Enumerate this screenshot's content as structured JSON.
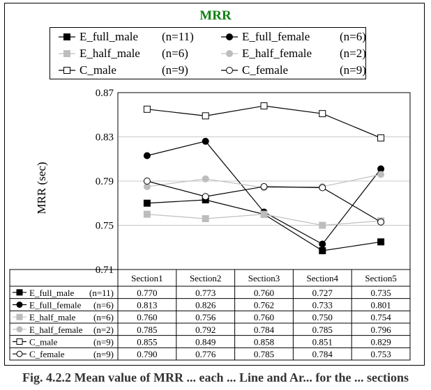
{
  "chart_data": {
    "type": "line",
    "title": "MRR",
    "ylabel": "MRR (sec)",
    "xlabel": "",
    "categories": [
      "Section1",
      "Section2",
      "Section3",
      "Section4",
      "Section5"
    ],
    "ylim": [
      0.71,
      0.87
    ],
    "yticks": [
      "0.87",
      "0.83",
      "0.79",
      "0.75",
      "0.71"
    ],
    "ytick_values": [
      0.87,
      0.83,
      0.79,
      0.75,
      0.71
    ],
    "grid": "horizontal",
    "legend_placement": "top",
    "series": [
      {
        "name": "E_full_male",
        "count": "(n=11)",
        "marker": "filled-square",
        "color": "#000000",
        "marker_color": "#000000",
        "values": [
          0.77,
          0.773,
          0.76,
          0.727,
          0.735
        ],
        "labels": [
          "0.770",
          "0.773",
          "0.760",
          "0.727",
          "0.735"
        ]
      },
      {
        "name": "E_full_female",
        "count": "(n=6)",
        "marker": "filled-circle",
        "color": "#000000",
        "marker_color": "#000000",
        "values": [
          0.813,
          0.826,
          0.762,
          0.733,
          0.801
        ],
        "labels": [
          "0.813",
          "0.826",
          "0.762",
          "0.733",
          "0.801"
        ]
      },
      {
        "name": "E_half_male",
        "count": "(n=6)",
        "marker": "filled-square",
        "color": "#c0c0c0",
        "marker_color": "#bdbdbd",
        "values": [
          0.76,
          0.756,
          0.76,
          0.75,
          0.754
        ],
        "labels": [
          "0.760",
          "0.756",
          "0.760",
          "0.750",
          "0.754"
        ]
      },
      {
        "name": "E_half_female",
        "count": "(n=2)",
        "marker": "filled-circle",
        "color": "#c0c0c0",
        "marker_color": "#bdbdbd",
        "values": [
          0.785,
          0.792,
          0.784,
          0.785,
          0.796
        ],
        "labels": [
          "0.785",
          "0.792",
          "0.784",
          "0.785",
          "0.796"
        ]
      },
      {
        "name": "C_male",
        "count": "(n=9)",
        "marker": "open-square",
        "color": "#000000",
        "marker_color": "#000000",
        "values": [
          0.855,
          0.849,
          0.858,
          0.851,
          0.829
        ],
        "labels": [
          "0.855",
          "0.849",
          "0.858",
          "0.851",
          "0.829"
        ]
      },
      {
        "name": "C_female",
        "count": "(n=9)",
        "marker": "open-circle",
        "color": "#000000",
        "marker_color": "#000000",
        "values": [
          0.79,
          0.776,
          0.785,
          0.784,
          0.753
        ],
        "labels": [
          "0.790",
          "0.776",
          "0.785",
          "0.784",
          "0.753"
        ]
      }
    ]
  },
  "caption": "Fig. 4.2.2 Mean value of MRR ... each ... Line and Ar... for the ... sections"
}
